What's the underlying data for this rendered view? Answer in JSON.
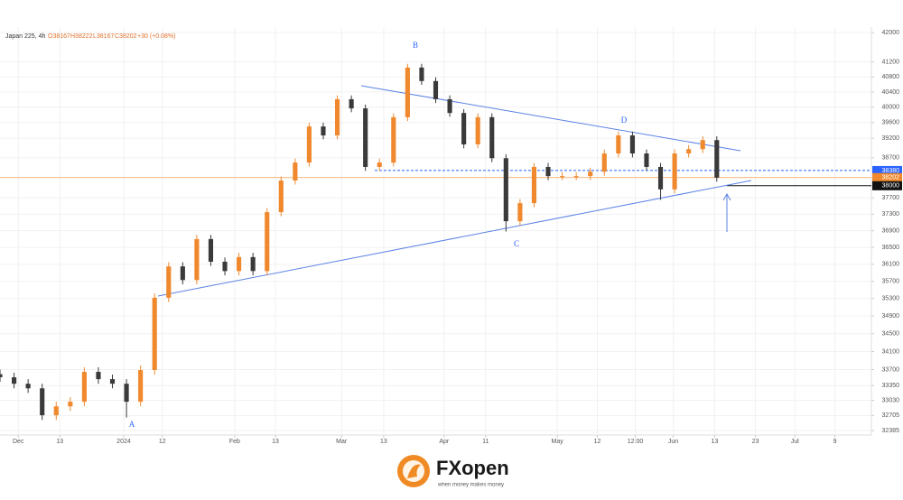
{
  "chart_data": {
    "type": "candlestick",
    "header": {
      "symbol": "Japan 225, 4h",
      "open": "O38167",
      "high": "H38222",
      "low": "L38167",
      "close": "C38202",
      "change": "+30 (+0.08%)"
    },
    "x": [
      0,
      2,
      4,
      6,
      8,
      10,
      12,
      14,
      16,
      18,
      20,
      22,
      24,
      26,
      28,
      30,
      32,
      34,
      36,
      38,
      40,
      42,
      44,
      46,
      48,
      50,
      52,
      54,
      56,
      58,
      60,
      62,
      64,
      66,
      68,
      70,
      72,
      74,
      76,
      78,
      80,
      82,
      84,
      86,
      88,
      90,
      92,
      94,
      96,
      98,
      100,
      102
    ],
    "open": [
      33600,
      33530,
      33390,
      33290,
      32710,
      32900,
      33000,
      33650,
      33490,
      33390,
      33000,
      33690,
      35320,
      36050,
      35730,
      36700,
      36160,
      35940,
      36270,
      35940,
      37350,
      38130,
      38580,
      39500,
      39270,
      40210,
      39970,
      38470,
      38580,
      39740,
      41050,
      40690,
      40210,
      39850,
      39040,
      39740,
      38690,
      37130,
      37570,
      38470,
      38240,
      38240,
      38240,
      38350,
      38810,
      39270,
      38810,
      38470,
      37910,
      38810,
      38920,
      39150
    ],
    "high": [
      33700,
      33630,
      33490,
      33390,
      33000,
      33100,
      33750,
      33750,
      33590,
      33490,
      33790,
      35420,
      36150,
      36150,
      36800,
      36800,
      36260,
      36370,
      36370,
      37450,
      38230,
      38680,
      39600,
      39600,
      40310,
      40310,
      40070,
      38680,
      39840,
      41150,
      41150,
      40790,
      40310,
      39950,
      39840,
      39840,
      38790,
      37670,
      38570,
      38570,
      38340,
      38340,
      38450,
      38910,
      39370,
      39370,
      38910,
      38570,
      38910,
      39020,
      39250,
      39250
    ],
    "low": [
      33430,
      33290,
      33190,
      32610,
      32610,
      32800,
      32900,
      33390,
      33290,
      32660,
      32900,
      33590,
      35220,
      35630,
      35630,
      36060,
      35840,
      35840,
      35840,
      35840,
      37250,
      38030,
      38480,
      39170,
      39170,
      39870,
      38370,
      38370,
      38480,
      39640,
      40590,
      40110,
      39750,
      38940,
      38940,
      38590,
      36880,
      37030,
      37470,
      38140,
      38140,
      38140,
      38140,
      38250,
      38710,
      38710,
      38370,
      37650,
      37810,
      38710,
      38820,
      38100
    ],
    "close": [
      33530,
      33390,
      33290,
      32710,
      32900,
      33000,
      33650,
      33490,
      33390,
      33000,
      33690,
      35320,
      36050,
      35730,
      36700,
      36160,
      35940,
      36270,
      35940,
      37350,
      38130,
      38580,
      39500,
      39270,
      40210,
      39970,
      38470,
      38580,
      39740,
      41050,
      40690,
      40210,
      39850,
      39040,
      39740,
      38690,
      37130,
      37570,
      38470,
      38240,
      38240,
      38240,
      38350,
      38810,
      39270,
      38810,
      38470,
      37910,
      38810,
      38920,
      39150,
      38202
    ],
    "up_color": "#f0892e",
    "down_color": "#3a3a3a",
    "xlim": [
      0,
      124
    ],
    "xticks": [
      {
        "value": 2.6,
        "label": "Dec"
      },
      {
        "value": 8.5,
        "label": "13"
      },
      {
        "value": 17.6,
        "label": "2024"
      },
      {
        "value": 23.1,
        "label": "12"
      },
      {
        "value": 33.4,
        "label": "Feb"
      },
      {
        "value": 39.2,
        "label": "13"
      },
      {
        "value": 48.6,
        "label": "Mar"
      },
      {
        "value": 54.6,
        "label": "13"
      },
      {
        "value": 63.2,
        "label": "Apr"
      },
      {
        "value": 69.1,
        "label": "11"
      },
      {
        "value": 79.3,
        "label": "May"
      },
      {
        "value": 85,
        "label": "12"
      },
      {
        "value": 90.4,
        "label": "12:00"
      },
      {
        "value": 95.8,
        "label": "Jun"
      },
      {
        "value": 101.7,
        "label": "13"
      },
      {
        "value": 107.5,
        "label": "23"
      },
      {
        "value": 113.1,
        "label": "Jul"
      },
      {
        "value": 118.8,
        "label": "9"
      }
    ],
    "ylim": [
      32290,
      42150
    ],
    "log_scale": true,
    "yticks": [
      42000,
      41200,
      40800,
      40400,
      40000,
      39600,
      39200,
      38700,
      37700,
      37300,
      36900,
      36500,
      36100,
      35700,
      35300,
      34900,
      34500,
      34100,
      33700,
      33350,
      33030,
      32705,
      32385
    ],
    "grid": true,
    "price_labels": [
      {
        "value": 38380,
        "color": "#2962ff"
      },
      {
        "value": 38202,
        "color": "#f0892e"
      },
      {
        "value": 38000,
        "color": "#111111"
      }
    ],
    "annotations": [
      "A",
      "B",
      "C",
      "D"
    ],
    "footer": {
      "brand": "FXopen",
      "tagline": "when money makes money"
    }
  }
}
